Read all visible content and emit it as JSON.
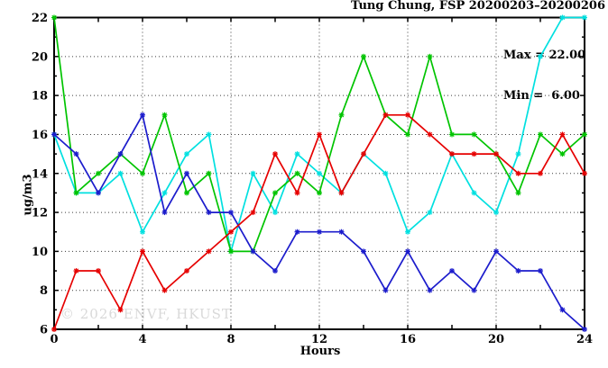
{
  "title": "Tung Chung, FSP 20200203–20200206",
  "legend": {
    "max_label": "Max = 22.00",
    "min_label": "Min =  6.00"
  },
  "watermark": "© 2026 ENVF, HKUST",
  "chart_data": {
    "type": "line",
    "title": "Tung Chung, FSP 20200203–20200206",
    "xlabel": "Hours",
    "ylabel": "ug/m3",
    "xlim": [
      0,
      24
    ],
    "ylim": [
      6,
      22
    ],
    "grid": true,
    "legend_position": "none",
    "annotations": [
      "Max = 22.00",
      "Min =  6.00"
    ],
    "xticks_labeled": [
      0,
      4,
      8,
      12,
      16,
      20,
      24
    ],
    "xticks_minor": [
      2,
      6,
      10,
      14,
      18,
      22
    ],
    "yticks_labeled": [
      6,
      8,
      10,
      12,
      14,
      16,
      18,
      20,
      22
    ],
    "yticks_minor": [
      7,
      9,
      11,
      13,
      15,
      17,
      19,
      21
    ],
    "grid_x": [
      4,
      8,
      12,
      16,
      20
    ],
    "grid_y": [
      8,
      10,
      12,
      14,
      16,
      18,
      20
    ],
    "x": [
      0,
      1,
      2,
      3,
      4,
      5,
      6,
      7,
      8,
      9,
      10,
      11,
      12,
      13,
      14,
      15,
      16,
      17,
      18,
      19,
      20,
      21,
      22,
      23,
      24
    ],
    "series": [
      {
        "name": "series-cyan",
        "color": "#00e0e0",
        "values": [
          16,
          13,
          13,
          14,
          11,
          13,
          15,
          16,
          10,
          14,
          12,
          15,
          14,
          13,
          15,
          14,
          11,
          12,
          15,
          13,
          12,
          15,
          20,
          22,
          22
        ]
      },
      {
        "name": "series-green",
        "color": "#00c400",
        "values": [
          22,
          13,
          14,
          15,
          14,
          17,
          13,
          14,
          10,
          10,
          13,
          14,
          13,
          17,
          20,
          17,
          16,
          20,
          16,
          16,
          15,
          13,
          16,
          15,
          16
        ]
      },
      {
        "name": "series-blue",
        "color": "#1c1ccc",
        "values": [
          16,
          15,
          13,
          15,
          17,
          12,
          14,
          12,
          12,
          10,
          9,
          11,
          11,
          11,
          10,
          8,
          10,
          8,
          9,
          8,
          10,
          9,
          9,
          7,
          6
        ]
      },
      {
        "name": "series-red",
        "color": "#e60000",
        "values": [
          6,
          9,
          9,
          7,
          10,
          8,
          9,
          10,
          11,
          12,
          15,
          13,
          16,
          13,
          15,
          17,
          17,
          16,
          15,
          15,
          15,
          14,
          14,
          16,
          14
        ]
      }
    ]
  }
}
